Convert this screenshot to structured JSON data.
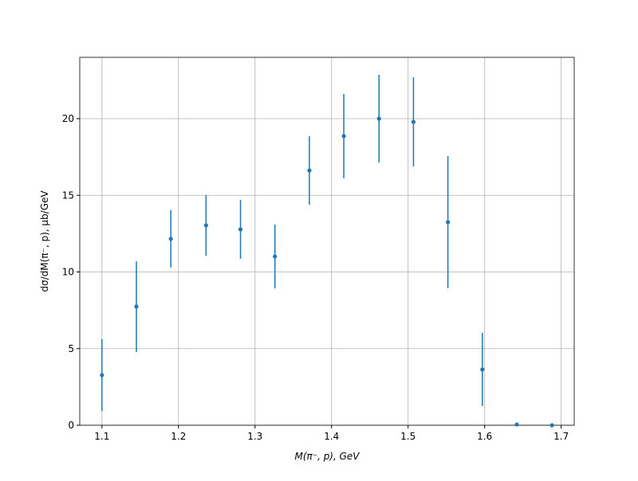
{
  "chart_data": {
    "type": "errorbar",
    "xlabel": "M(π⁻, p), GeV",
    "ylabel": "dσ/dM(π⁻, p), μb/GeV",
    "x": [
      1.1,
      1.145,
      1.19,
      1.236,
      1.281,
      1.326,
      1.371,
      1.416,
      1.462,
      1.507,
      1.552,
      1.597,
      1.642,
      1.688
    ],
    "values": [
      3.27,
      7.74,
      12.16,
      13.04,
      12.78,
      11.01,
      16.62,
      18.86,
      20.0,
      19.79,
      13.25,
      3.64,
      0.05,
      0.0
    ],
    "errors": [
      2.35,
      2.96,
      1.87,
      1.98,
      1.92,
      2.08,
      2.23,
      2.75,
      2.86,
      2.91,
      4.31,
      2.39,
      0.0,
      0.0
    ],
    "color": "#1f77b4",
    "xlim": [
      1.071,
      1.717
    ],
    "ylim": [
      0,
      24
    ],
    "xticks": [
      1.1,
      1.2,
      1.3,
      1.4,
      1.5,
      1.6,
      1.7
    ],
    "yticks": [
      0,
      5,
      10,
      15,
      20
    ],
    "grid": true
  }
}
